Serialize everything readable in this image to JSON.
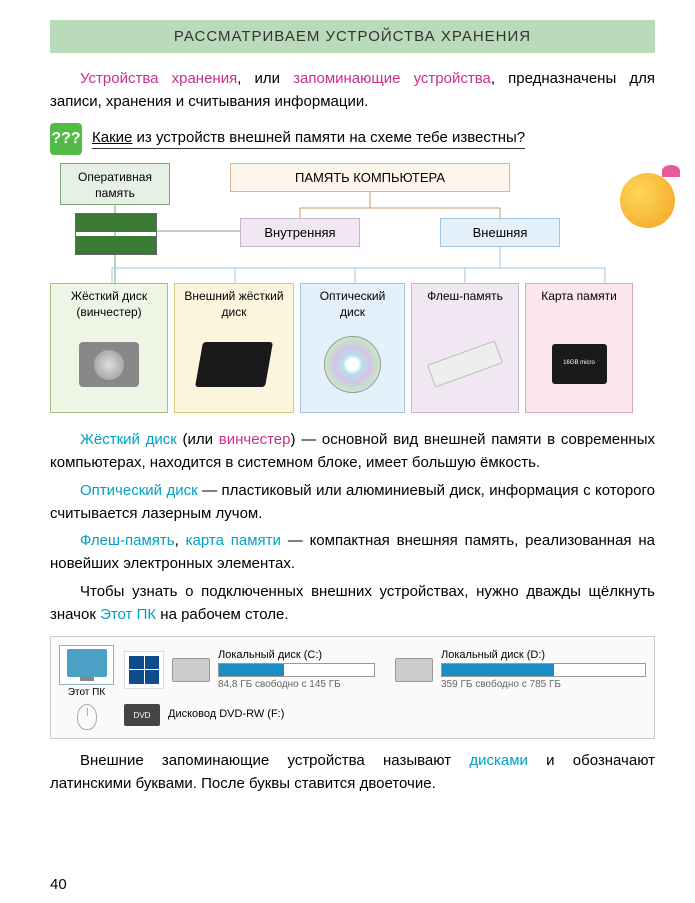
{
  "title": "РАССМАТРИВАЕМ УСТРОЙСТВА ХРАНЕНИЯ",
  "intro": {
    "part1": "Устройства хранения",
    "part2": ", или ",
    "part3": "запоминающие устройства",
    "part4": ", предназначены для записи, хранения и считывания информации."
  },
  "question": {
    "word": "Какие",
    "rest": " из устройств внешней памяти на схеме тебе известны?"
  },
  "diagram": {
    "top": "ПАМЯТЬ КОМПЬЮТЕРА",
    "ram": "Оперативная память",
    "internal": "Внутренняя",
    "external": "Внешняя",
    "devices": {
      "hdd": "Жёсткий диск (винчестер)",
      "ext": "Внешний жёсткий диск",
      "opt": "Оптический диск",
      "flash": "Флеш-память",
      "card": "Карта памяти",
      "card_label": "16GB micro"
    }
  },
  "paragraphs": {
    "p1_a": "Жёсткий диск",
    "p1_b": " (или ",
    "p1_c": "винчестер",
    "p1_d": ") — основной вид внешней памяти в современных компьютерах, находится в системном блоке, имеет большую ёмкость.",
    "p2_a": "Оптический диск",
    "p2_b": " — пластиковый или алюминиевый диск, информация с которого считывается лазерным лучом.",
    "p3_a": "Флеш-память",
    "p3_b": ", ",
    "p3_c": "карта памяти",
    "p3_d": " — компактная внешняя память, реализованная на новейших электронных элементах.",
    "p4_a": "Чтобы узнать о подключенных внешних устройствах, нужно дважды щёлкнуть значок ",
    "p4_b": "Этот ПК",
    "p4_c": " на рабочем столе."
  },
  "pc_label": "Этот ПК",
  "drives": {
    "c": {
      "name": "Локальный диск (C:)",
      "text": "84,8 ГБ свободно с 145 ГБ",
      "fill_pct": 42
    },
    "d": {
      "name": "Локальный диск (D:)",
      "text": "359 ГБ свободно с 785 ГБ",
      "fill_pct": 55
    },
    "dvd": {
      "name": "Дисковод DVD-RW (F:)",
      "icon": "DVD"
    }
  },
  "closing": {
    "a": "Внешние запоминающие устройства называют ",
    "b": "дисками",
    "c": " и обозначают латинскими буквами. После буквы ставится двоеточие."
  },
  "page_number": "40",
  "colors": {
    "title_bg": "#b9dbb9",
    "magenta": "#c9308e",
    "cyan": "#00a0c5",
    "link_blue": "#3878b5"
  }
}
